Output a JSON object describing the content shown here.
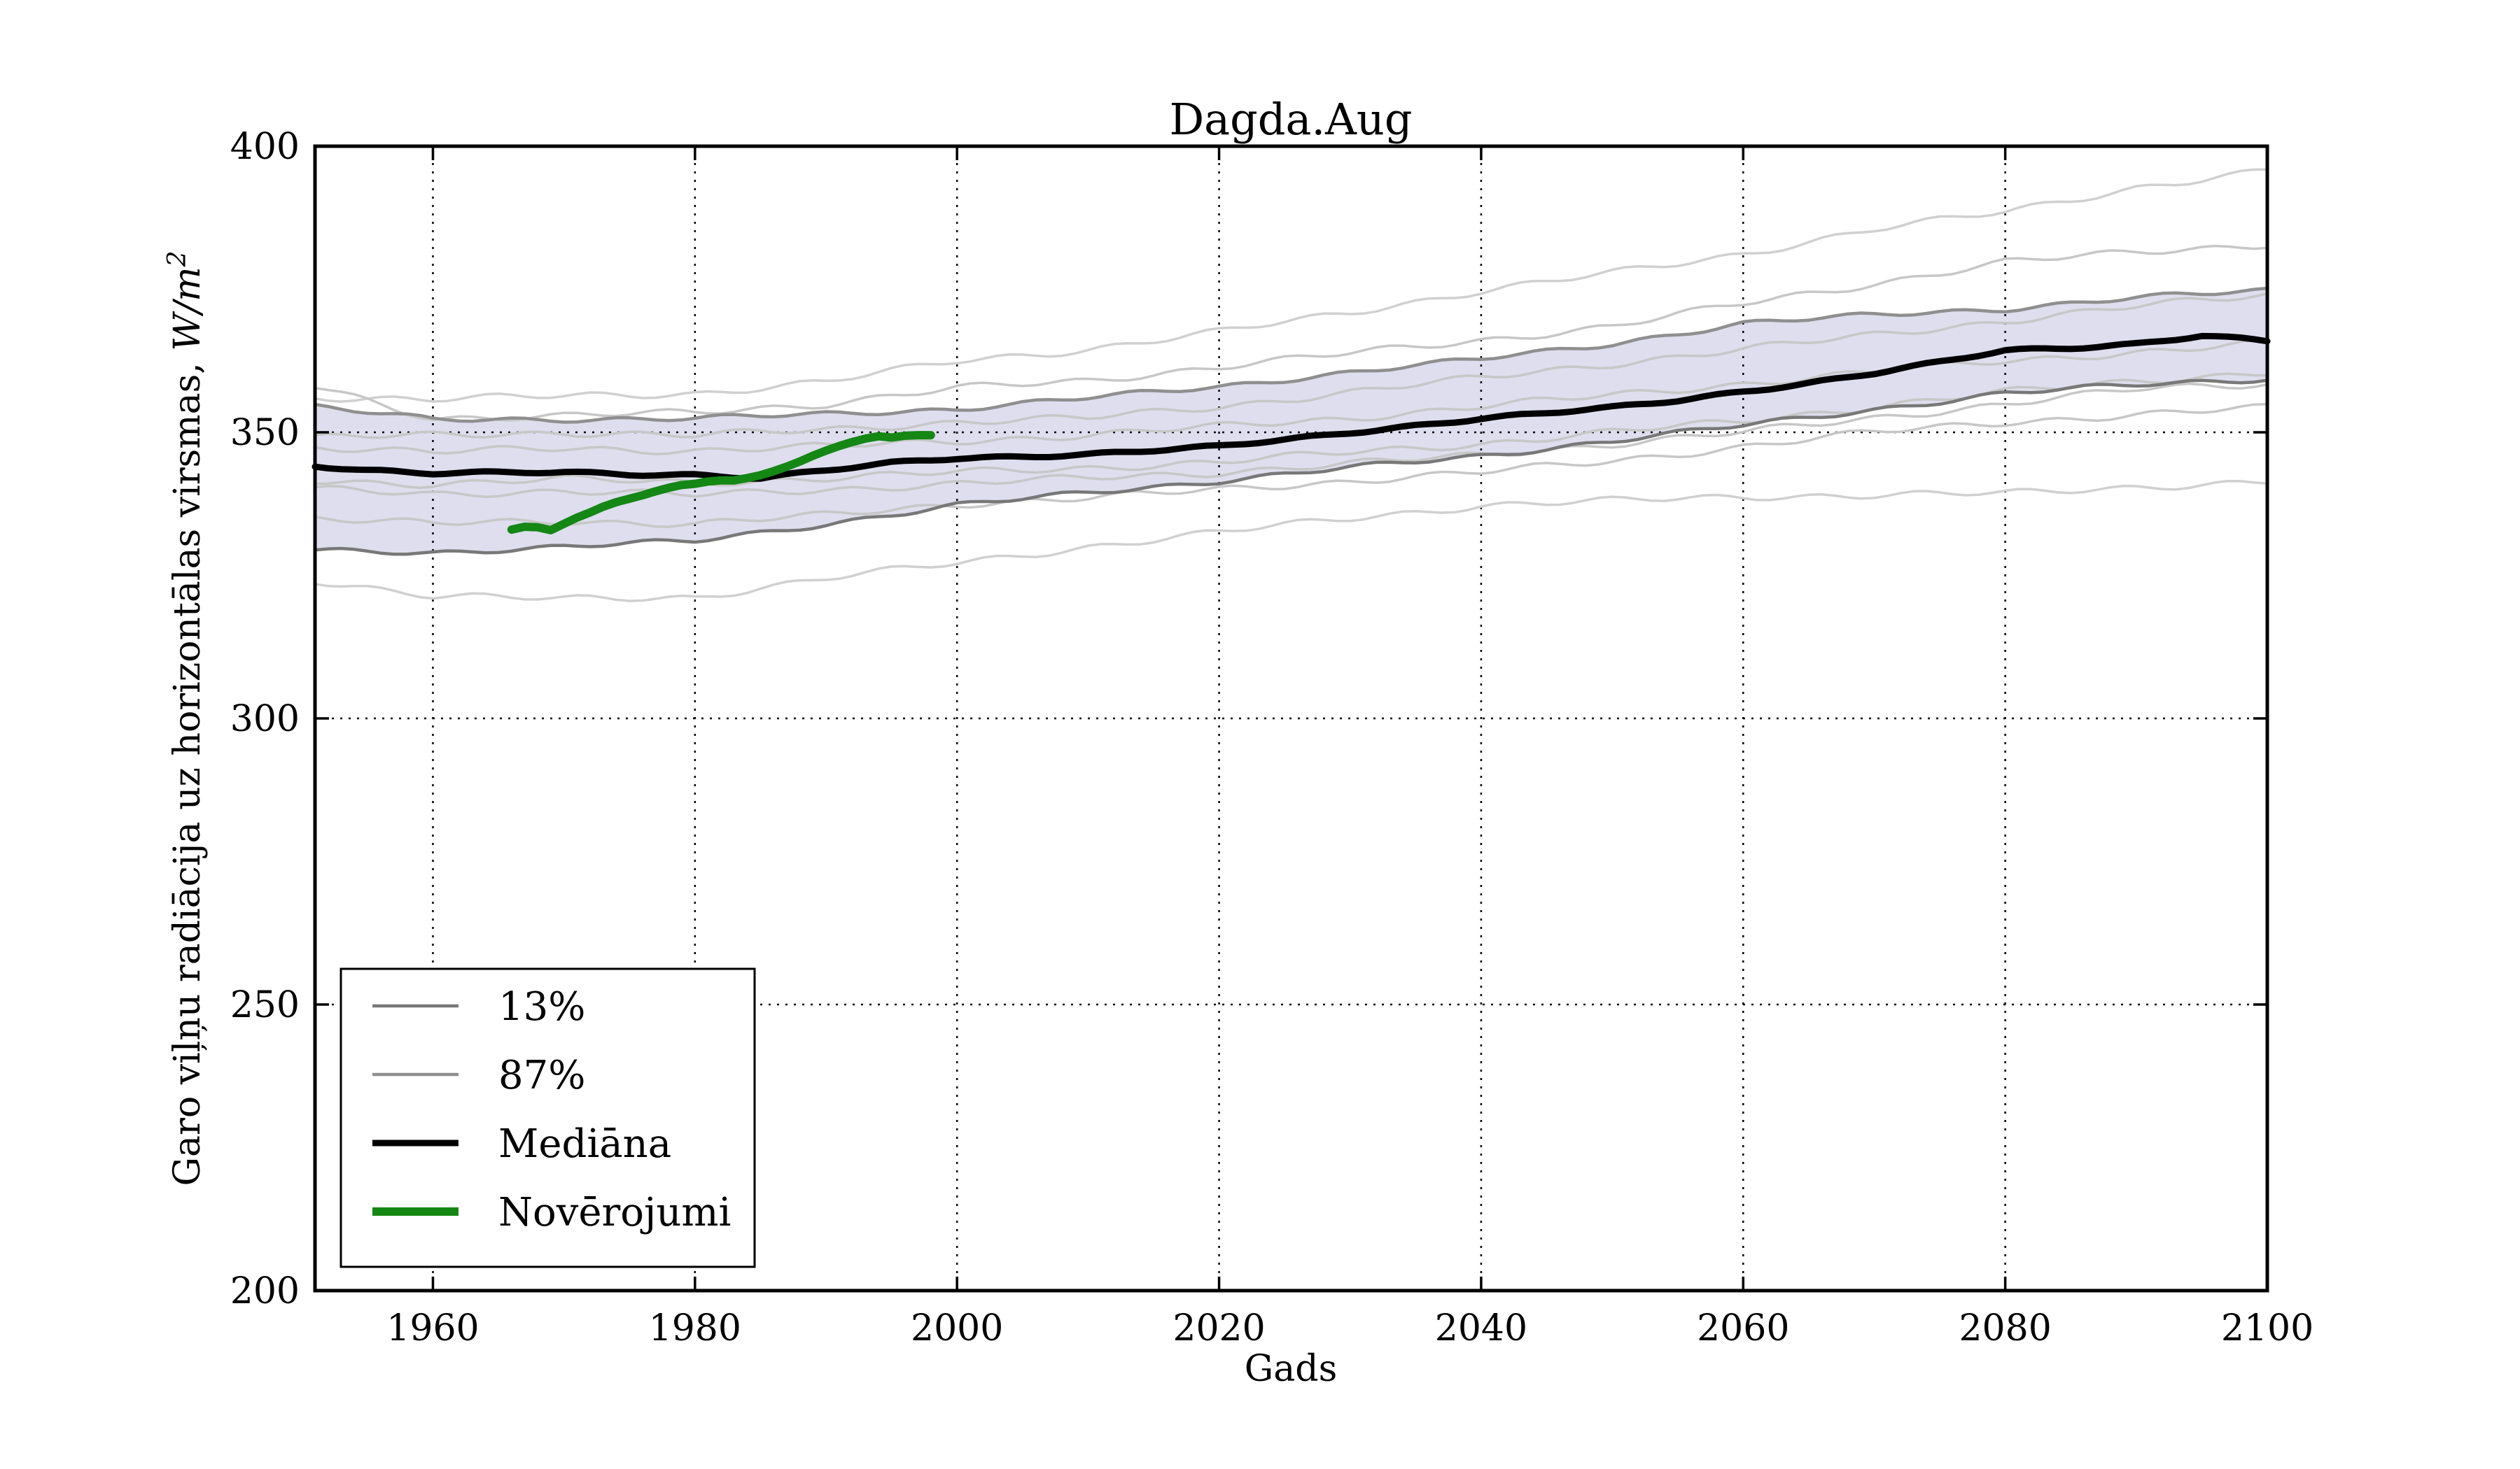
{
  "figure": {
    "title": "Dagda.Aug",
    "xlabel": "Gads",
    "ylabel_text": "Garo viļņu radiācija uz horizontālas virsmas, ",
    "ylabel_math": "W/m",
    "ylabel_sup": "2",
    "background_color": "#ffffff",
    "grid_style": "dotted"
  },
  "legend": {
    "entries": [
      {
        "label": "13%",
        "color": "#787878",
        "line_width": 4.5
      },
      {
        "label": "87%",
        "color": "#8f8f8f",
        "line_width": 4.5
      },
      {
        "label": "Mediāna",
        "color": "#000000",
        "line_width": 9
      },
      {
        "label": "Novērojumi",
        "color": "#148714",
        "line_width": 12
      }
    ]
  },
  "chart_data": {
    "type": "line",
    "title": "Dagda.Aug",
    "xlabel": "Gads",
    "ylabel": "Garo viļņu radiācija uz horizontālas virsmas, W/m²",
    "xlim": [
      1951,
      2100
    ],
    "ylim": [
      200,
      400
    ],
    "xticks": [
      1960,
      1980,
      2000,
      2020,
      2040,
      2060,
      2080,
      2100
    ],
    "xtick_labels": [
      "1960",
      "1980",
      "2000",
      "2020",
      "2040",
      "2060",
      "2080",
      "2100"
    ],
    "yticks": [
      200,
      250,
      300,
      350,
      400
    ],
    "ytick_labels": [
      "200",
      "250",
      "300",
      "350",
      "400"
    ],
    "grid": "on-dotted",
    "legend_position": "lower-left",
    "band_fill_color": "#dedeef",
    "series": [
      {
        "name": "ensemble-member-1",
        "role": "member",
        "color": "#d0d0d0",
        "width": 3.5,
        "x": [
          1951,
          1960,
          1970,
          1980,
          1990,
          2000,
          2010,
          2020,
          2030,
          2040,
          2050,
          2060,
          2070,
          2080,
          2090,
          2100
        ],
        "values": [
          356.2,
          355.8,
          356.3,
          356.8,
          358.8,
          362.5,
          364.5,
          367.5,
          371.0,
          374.7,
          377.8,
          381.2,
          385.5,
          388.5,
          392.8,
          395.7
        ]
      },
      {
        "name": "ensemble-member-2",
        "role": "member",
        "color": "#c7c7c7",
        "width": 3.5,
        "x": [
          1951,
          1960,
          1970,
          1980,
          1990,
          2000,
          2010,
          2020,
          2030,
          2040,
          2050,
          2060,
          2070,
          2080,
          2090,
          2100
        ],
        "values": [
          358.0,
          352.5,
          352.8,
          353.5,
          355.0,
          357.7,
          359.0,
          361.5,
          363.8,
          366.1,
          368.5,
          372.5,
          376.0,
          379.7,
          381.5,
          382.9
        ]
      },
      {
        "name": "ensemble-member-3",
        "role": "member",
        "color": "#c7c7c7",
        "width": 3.5,
        "x": [
          1951,
          1960,
          1970,
          1980,
          1990,
          2000,
          2010,
          2020,
          2030,
          2040,
          2050,
          2060,
          2070,
          2080,
          2090,
          2100
        ],
        "values": [
          349.0,
          349.5,
          350.0,
          349.4,
          350.5,
          351.8,
          352.5,
          354.5,
          357.0,
          359.5,
          362.0,
          364.5,
          367.0,
          369.5,
          372.0,
          374.0
        ]
      },
      {
        "name": "ensemble-member-4",
        "role": "member",
        "color": "#c7c7c7",
        "width": 3.5,
        "x": [
          1951,
          1960,
          1970,
          1980,
          1990,
          2000,
          2010,
          2020,
          2030,
          2040,
          2050,
          2060,
          2070,
          2080,
          2090,
          2100
        ],
        "values": [
          347.5,
          346.5,
          347.2,
          346.8,
          347.5,
          348.5,
          349.5,
          351.0,
          352.5,
          354.5,
          356.5,
          358.5,
          360.5,
          362.5,
          364.0,
          365.5
        ]
      },
      {
        "name": "ensemble-member-5",
        "role": "member",
        "color": "#c7c7c7",
        "width": 3.5,
        "x": [
          1951,
          1960,
          1970,
          1980,
          1990,
          2000,
          2010,
          2020,
          2030,
          2040,
          2050,
          2060,
          2070,
          2080,
          2090,
          2100
        ],
        "values": [
          341.5,
          341.0,
          341.8,
          341.2,
          342.0,
          343.0,
          343.8,
          344.8,
          346.5,
          348.0,
          350.0,
          352.0,
          354.5,
          357.0,
          359.0,
          360.5
        ]
      },
      {
        "name": "ensemble-member-6",
        "role": "member",
        "color": "#c7c7c7",
        "width": 3.5,
        "x": [
          1951,
          1960,
          1970,
          1980,
          1990,
          2000,
          2010,
          2020,
          2030,
          2040,
          2050,
          2060,
          2070,
          2080,
          2090,
          2100
        ],
        "values": [
          340.0,
          339.2,
          339.8,
          339.0,
          340.0,
          341.0,
          342.0,
          343.0,
          344.5,
          346.0,
          348.0,
          350.0,
          352.5,
          355.0,
          357.5,
          358.5
        ]
      },
      {
        "name": "ensemble-member-7",
        "role": "member",
        "color": "#c7c7c7",
        "width": 3.5,
        "x": [
          1951,
          1960,
          1970,
          1980,
          1990,
          2000,
          2010,
          2020,
          2030,
          2040,
          2050,
          2060,
          2070,
          2080,
          2090,
          2100
        ],
        "values": [
          335.0,
          334.0,
          334.5,
          334.0,
          335.5,
          337.5,
          338.5,
          340.0,
          341.5,
          343.0,
          345.0,
          347.5,
          350.0,
          351.8,
          353.0,
          354.3
        ]
      },
      {
        "name": "ensemble-member-8",
        "role": "member",
        "color": "#d0d0d0",
        "width": 3.5,
        "x": [
          1951,
          1960,
          1970,
          1980,
          1990,
          2000,
          2010,
          2020,
          2030,
          2040,
          2050,
          2060,
          2070,
          2080,
          2090,
          2100
        ],
        "values": [
          324.1,
          321.5,
          320.8,
          321.2,
          324.5,
          327.1,
          330.0,
          332.5,
          335.0,
          337.2,
          338.0,
          338.8,
          339.0,
          339.3,
          340.5,
          341.3
        ]
      },
      {
        "name": "13%",
        "role": "percentile-lower",
        "color": "#787878",
        "width": 4.5,
        "x": [
          1951,
          1960,
          1970,
          1980,
          1990,
          2000,
          2010,
          2020,
          2030,
          2040,
          2050,
          2060,
          2070,
          2080,
          2090,
          2100
        ],
        "values": [
          329.3,
          329.0,
          330.0,
          331.0,
          334.0,
          337.2,
          339.5,
          341.5,
          343.8,
          345.9,
          348.5,
          351.2,
          354.0,
          356.8,
          358.3,
          359.4
        ]
      },
      {
        "name": "87%",
        "role": "percentile-upper",
        "color": "#8f8f8f",
        "width": 4.5,
        "x": [
          1951,
          1960,
          1970,
          1980,
          1990,
          2000,
          2010,
          2020,
          2030,
          2040,
          2050,
          2060,
          2070,
          2080,
          2090,
          2100
        ],
        "values": [
          354.5,
          352.2,
          352.3,
          352.4,
          353.2,
          354.1,
          356.0,
          358.0,
          360.5,
          362.8,
          365.5,
          369.0,
          370.5,
          371.6,
          373.5,
          374.8
        ]
      },
      {
        "name": "Mediāna",
        "role": "median",
        "color": "#000000",
        "width": 9,
        "x": [
          1951,
          1955,
          1960,
          1965,
          1970,
          1975,
          1980,
          1985,
          1990,
          1995,
          2000,
          2005,
          2010,
          2015,
          2020,
          2025,
          2030,
          2035,
          2040,
          2045,
          2050,
          2055,
          2060,
          2065,
          2070,
          2075,
          2080,
          2085,
          2090,
          2095,
          2100
        ],
        "values": [
          344.2,
          343.4,
          342.8,
          342.9,
          343.0,
          342.7,
          342.6,
          342.0,
          343.3,
          344.6,
          345.5,
          345.8,
          346.2,
          346.8,
          347.5,
          348.7,
          350.0,
          351.2,
          352.4,
          353.3,
          354.3,
          355.6,
          357.2,
          358.6,
          360.3,
          362.2,
          364.3,
          364.8,
          365.5,
          366.9,
          365.9
        ]
      },
      {
        "name": "Novērojumi",
        "role": "observations",
        "color": "#148714",
        "width": 12,
        "x": [
          1966,
          1967,
          1968,
          1969,
          1970,
          1971,
          1972,
          1973,
          1974,
          1975,
          1976,
          1977,
          1978,
          1979,
          1980,
          1981,
          1982,
          1983,
          1984,
          1985,
          1986,
          1987,
          1988,
          1989,
          1990,
          1991,
          1992,
          1993,
          1994,
          1995,
          1996,
          1997,
          1998
        ],
        "values": [
          333.0,
          333.5,
          333.4,
          332.9,
          334.0,
          335.1,
          336.0,
          337.0,
          337.8,
          338.4,
          339.0,
          339.7,
          340.3,
          340.8,
          341.0,
          341.4,
          341.6,
          341.6,
          342.0,
          342.5,
          343.2,
          344.0,
          344.9,
          345.9,
          346.8,
          347.6,
          348.3,
          348.9,
          349.3,
          349.1,
          349.4,
          349.5,
          349.5
        ]
      }
    ]
  }
}
